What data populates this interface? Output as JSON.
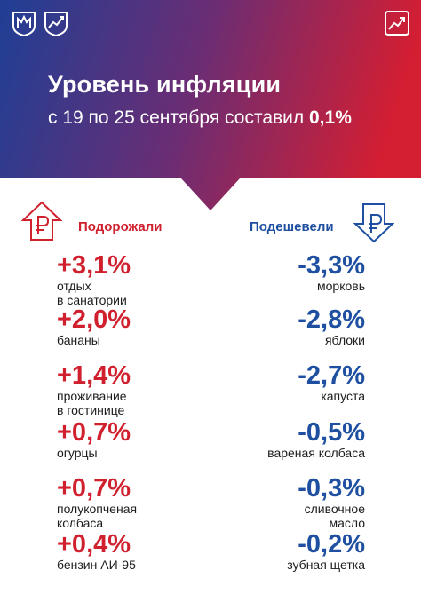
{
  "header": {
    "title": "Уровень инфляции",
    "subtitle_prefix": "с 19 по 25 сентября составил ",
    "subtitle_value": "0,1%"
  },
  "icons": {
    "logo_left_1": "city-emblem-icon",
    "logo_left_2": "city-chart-emblem-icon",
    "logo_right": "trend-chart-icon",
    "up_icon": "ruble-arrow-up-icon",
    "down_icon": "ruble-arrow-down-icon"
  },
  "colors": {
    "increase": "#d0202e",
    "decrease": "#1e4fa0",
    "gradient_start": "#1f3f95",
    "gradient_end": "#d41e32"
  },
  "increased": {
    "heading": "Подорожали",
    "items": [
      {
        "value": "+3,1%",
        "label": "отдых\nв санатории"
      },
      {
        "value": "+2,0%",
        "label": "бананы"
      },
      {
        "value": "+1,4%",
        "label": "проживание\nв гостинице"
      },
      {
        "value": "+0,7%",
        "label": "огурцы"
      },
      {
        "value": "+0,7%",
        "label": "полукопченая\nколбаса"
      },
      {
        "value": "+0,4%",
        "label": "бензин АИ-95"
      }
    ]
  },
  "decreased": {
    "heading": "Подешевели",
    "items": [
      {
        "value": "-3,3%",
        "label": "морковь"
      },
      {
        "value": "-2,8%",
        "label": "яблоки"
      },
      {
        "value": "-2,7%",
        "label": "капуста"
      },
      {
        "value": "-0,5%",
        "label": "вареная колбаса"
      },
      {
        "value": "-0,3%",
        "label": "сливочное\nмасло"
      },
      {
        "value": "-0,2%",
        "label": "зубная щетка"
      }
    ]
  }
}
